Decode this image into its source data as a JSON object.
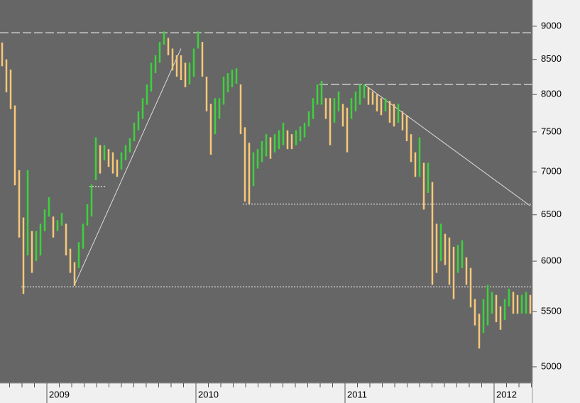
{
  "chart_data": {
    "type": "ohlc",
    "categories": [
      null,
      null,
      null,
      null,
      null,
      null,
      null,
      null,
      null,
      null,
      null,
      "2009",
      null,
      null,
      null,
      null,
      null,
      null,
      null,
      null,
      null,
      null,
      null,
      null,
      null,
      null,
      null,
      null,
      null,
      null,
      null,
      null,
      null,
      null,
      null,
      null,
      null,
      null,
      null,
      null,
      null,
      null,
      null,
      null,
      null,
      null,
      "2010",
      null,
      null,
      null,
      null,
      null,
      null,
      null,
      null,
      null,
      null,
      null,
      null,
      null,
      null,
      null,
      null,
      null,
      null,
      null,
      null,
      null,
      null,
      null,
      null,
      null,
      null,
      null,
      null,
      null,
      null,
      null,
      null,
      null,
      null,
      "2011",
      null,
      null,
      null,
      null,
      null,
      null,
      null,
      null,
      null,
      null,
      null,
      null,
      null,
      null,
      null,
      null,
      null,
      null,
      null,
      null,
      null,
      null,
      null,
      null,
      null,
      null,
      null,
      null,
      null,
      null,
      null,
      null,
      null,
      null,
      "2012",
      null,
      null,
      null,
      null,
      null,
      null,
      null,
      null
    ],
    "high": [
      8750,
      8500,
      8350,
      7850,
      7020,
      6470,
      7020,
      6320,
      6320,
      6400,
      6560,
      6700,
      6480,
      6440,
      6520,
      6400,
      6130,
      5990,
      6200,
      6400,
      6620,
      6850,
      7430,
      7330,
      7330,
      7280,
      7240,
      7150,
      7240,
      7330,
      7420,
      7620,
      7770,
      7950,
      8140,
      8450,
      8560,
      8760,
      8920,
      8820,
      8660,
      8560,
      8560,
      8450,
      8450,
      8660,
      8920,
      8760,
      8250,
      7870,
      7950,
      7950,
      8250,
      8300,
      8350,
      8370,
      8140,
      7560,
      7360,
      7240,
      7280,
      7380,
      7470,
      7430,
      7470,
      7520,
      7620,
      7520,
      7470,
      7520,
      7570,
      7620,
      7770,
      7950,
      8140,
      8190,
      7950,
      7950,
      7950,
      8040,
      7870,
      7820,
      7950,
      8040,
      8140,
      8140,
      8100,
      8040,
      8000,
      7950,
      7950,
      7910,
      7870,
      7870,
      7770,
      7720,
      7470,
      7240,
      7430,
      7110,
      7110,
      6880,
      6400,
      6400,
      6290,
      6250,
      6150,
      6170,
      6220,
      6040,
      5930,
      5620,
      5480,
      5620,
      5760,
      5690,
      5660,
      5550,
      5620,
      5720,
      5690,
      5660,
      5660,
      5690,
      5660
    ],
    "low": [
      8400,
      8030,
      7800,
      6840,
      6250,
      5670,
      6060,
      5880,
      6000,
      6060,
      6320,
      6480,
      6250,
      6320,
      6380,
      6060,
      5880,
      5750,
      5930,
      6130,
      6380,
      6480,
      6900,
      6980,
      7140,
      7060,
      6980,
      6940,
      7030,
      7140,
      7240,
      7380,
      7520,
      7670,
      7860,
      8040,
      8300,
      8450,
      8720,
      8560,
      8340,
      8250,
      8200,
      8100,
      8140,
      8250,
      8660,
      8250,
      7770,
      7210,
      7470,
      7670,
      7860,
      8030,
      8100,
      8150,
      7470,
      6650,
      6620,
      6830,
      7040,
      7120,
      7190,
      7160,
      7240,
      7280,
      7330,
      7280,
      7280,
      7330,
      7380,
      7430,
      7570,
      7670,
      7860,
      7860,
      7670,
      7330,
      7620,
      7770,
      7570,
      7240,
      7670,
      7770,
      7860,
      7950,
      7860,
      7860,
      7770,
      7720,
      7770,
      7620,
      7570,
      7620,
      7520,
      7380,
      7120,
      6940,
      6940,
      6560,
      6750,
      5760,
      5880,
      6000,
      5960,
      5760,
      5620,
      5880,
      5930,
      5760,
      5540,
      5370,
      5160,
      5300,
      5370,
      5480,
      5400,
      5330,
      5420,
      5550,
      5480,
      5480,
      5480,
      5480,
      5480
    ],
    "up_color": "#3cd23c",
    "down_color": "#f8c878",
    "log_y": true,
    "ylim": [
      4861,
      9417
    ],
    "yticks": [
      5000,
      5500,
      6000,
      6500,
      7000,
      7500,
      8000,
      8500,
      9000
    ],
    "levels": [
      {
        "value": 8900,
        "from": 0,
        "style": "dashed"
      },
      {
        "value": 8140,
        "from": 75,
        "style": "dashed"
      },
      {
        "value": 6620,
        "from": 57,
        "style": "dotted"
      },
      {
        "value": 5740,
        "from": 5,
        "style": "dotted"
      },
      {
        "value": 6825,
        "from": 21,
        "to": 24,
        "style": "dotted"
      }
    ],
    "trendlines": [
      {
        "from": 17,
        "to": 42,
        "start": 5760,
        "end": 8660
      },
      {
        "from": 85,
        "to": 124,
        "start": 8140,
        "end": 6600
      }
    ]
  }
}
